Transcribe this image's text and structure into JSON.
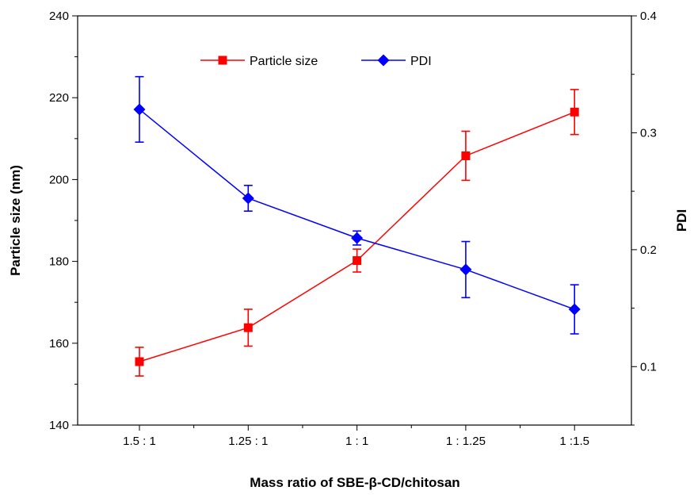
{
  "chart_data": {
    "type": "line",
    "xlabel": "Mass ratio of SBE-β-CD/chitosan",
    "categories": [
      "1.5 : 1",
      "1.25 : 1",
      "1 : 1",
      "1 : 1.25",
      "1 :1.5"
    ],
    "y_left": {
      "label": "Particle size (nm)",
      "range": [
        140,
        240
      ],
      "major_ticks": [
        140,
        160,
        180,
        200,
        220,
        240
      ],
      "tick_labels": [
        "140",
        "160",
        "180",
        "200",
        "220",
        "240"
      ]
    },
    "y_right": {
      "label": "PDI",
      "range": [
        0.05,
        0.4
      ],
      "major_ticks": [
        0.1,
        0.2,
        0.3,
        0.4
      ],
      "tick_labels": [
        "0.1",
        "0.2",
        "0.3",
        "0.4"
      ]
    },
    "series": [
      {
        "name": "Particle size",
        "axis": "left",
        "color": "#ff0000",
        "marker": "square",
        "values": [
          155.5,
          163.8,
          180.2,
          205.8,
          216.5
        ],
        "errors": [
          3.5,
          4.5,
          2.8,
          6.0,
          5.5
        ]
      },
      {
        "name": "PDI",
        "axis": "right",
        "color": "#0000ff",
        "marker": "diamond",
        "values": [
          0.32,
          0.244,
          0.21,
          0.183,
          0.149
        ],
        "errors": [
          0.028,
          0.011,
          0.006,
          0.024,
          0.021
        ]
      }
    ],
    "legend_position": "top-center",
    "grid": false
  }
}
